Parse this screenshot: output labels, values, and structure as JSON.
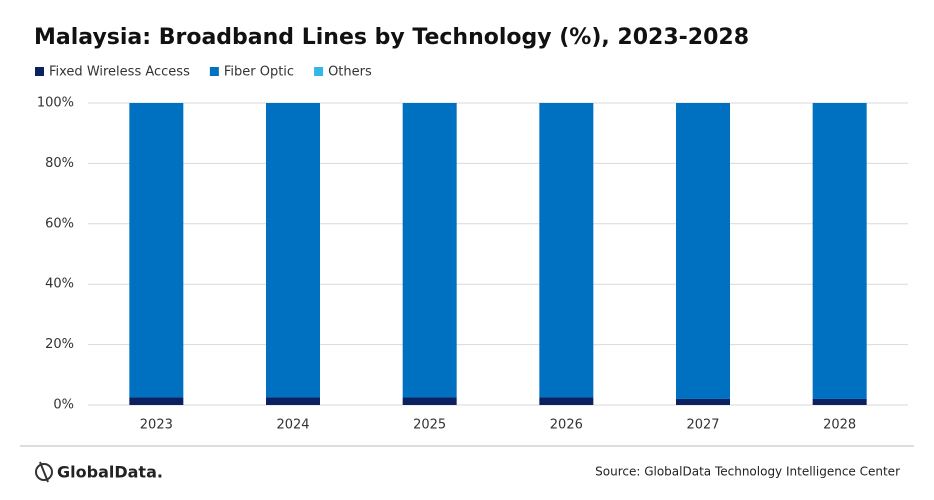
{
  "chart_data": {
    "type": "stacked_bar",
    "title": "Malaysia: Broadband Lines by Technology (%), 2023-2028",
    "categories": [
      "2023",
      "2024",
      "2025",
      "2026",
      "2027",
      "2028"
    ],
    "series": [
      {
        "name": "Fixed Wireless Access",
        "color": "#0c2160",
        "values": [
          2.5,
          2.5,
          2.5,
          2.5,
          2,
          2
        ]
      },
      {
        "name": "Fiber Optic",
        "color": "#0071c1",
        "values": [
          97.5,
          97.5,
          97.5,
          97.5,
          98,
          98
        ]
      },
      {
        "name": "Others",
        "color": "#35b6e8",
        "values": [
          0,
          0,
          0,
          0,
          0,
          0
        ]
      }
    ],
    "ylim": [
      0,
      100
    ],
    "yticks": [
      {
        "value": 0,
        "label": "0%"
      },
      {
        "value": 20,
        "label": "20%"
      },
      {
        "value": 40,
        "label": "40%"
      },
      {
        "value": 60,
        "label": "60%"
      },
      {
        "value": 80,
        "label": "80%"
      },
      {
        "value": 100,
        "label": "100%"
      }
    ],
    "grid": true,
    "legend": "top-left",
    "brand": "GlobalData.",
    "source": "Source: GlobalData Technology Intelligence Center"
  }
}
